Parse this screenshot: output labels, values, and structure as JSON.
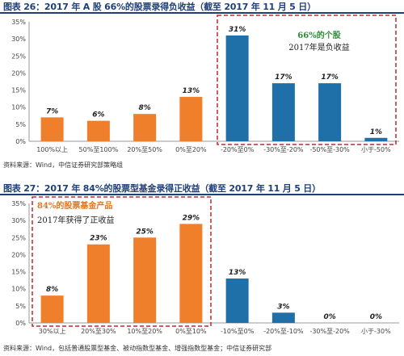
{
  "figures": [
    {
      "title": "图表 26：2017 年 A 股 66%的股票录得负收益（截至 2017 年 11 月 5 日）",
      "source": "资料来源：Wind，中信证券研究部策略组",
      "note_line1": "66%的个股",
      "note_line2": "2017年是负收益"
    },
    {
      "title": "图表 27：2017 年 84%的股票型基金录得正收益（截至 2017 年 11 月 5 日）",
      "source": "资料来源：Wind，包括普通股票型基金、被动指数型基金、增强指数型基金；中信证券研究部",
      "note_line1": "84%的股票基金产品",
      "note_line2": "2017年获得了正收益"
    }
  ],
  "colors": {
    "orange": "#f07f2b",
    "blue": "#1f6fa8",
    "highlight_box": "#c3262c",
    "note_green": "#2e8b3a",
    "note_orange": "#e0761f",
    "title_blue": "#1f3f7a"
  },
  "chart_data": [
    {
      "type": "bar",
      "categories": [
        "100%以上",
        "50%至100%",
        "20%至50%",
        "0%至20%",
        "-20%至0%",
        "-30%至-20%",
        "-50%至-30%",
        "小于-50%"
      ],
      "values": [
        7,
        6,
        8,
        13,
        31,
        17,
        17,
        1
      ],
      "labels": [
        "7%",
        "6%",
        "8%",
        "13%",
        "31%",
        "17%",
        "17%",
        "1%"
      ],
      "bar_colors": [
        "orange",
        "orange",
        "orange",
        "orange",
        "blue",
        "blue",
        "blue",
        "blue"
      ],
      "ylim": [
        0,
        35
      ],
      "yticks": [
        "0%",
        "5%",
        "10%",
        "15%",
        "20%",
        "25%",
        "30%",
        "35%"
      ],
      "grid": false
    },
    {
      "type": "bar",
      "categories": [
        "30%以上",
        "20%至30%",
        "10%至20%",
        "0%至10%",
        "-10%至0%",
        "-20%至-10%",
        "-30%至-20%",
        "小于-30%"
      ],
      "values": [
        8,
        23,
        25,
        29,
        13,
        3,
        0,
        0
      ],
      "labels": [
        "8%",
        "23%",
        "25%",
        "29%",
        "13%",
        "3%",
        "0%",
        "0%"
      ],
      "bar_colors": [
        "orange",
        "orange",
        "orange",
        "orange",
        "blue",
        "blue",
        "blue",
        "blue"
      ],
      "ylim": [
        0,
        35
      ],
      "yticks": [
        "0%",
        "5%",
        "10%",
        "15%",
        "20%",
        "25%",
        "30%",
        "35%"
      ],
      "grid": false
    }
  ]
}
